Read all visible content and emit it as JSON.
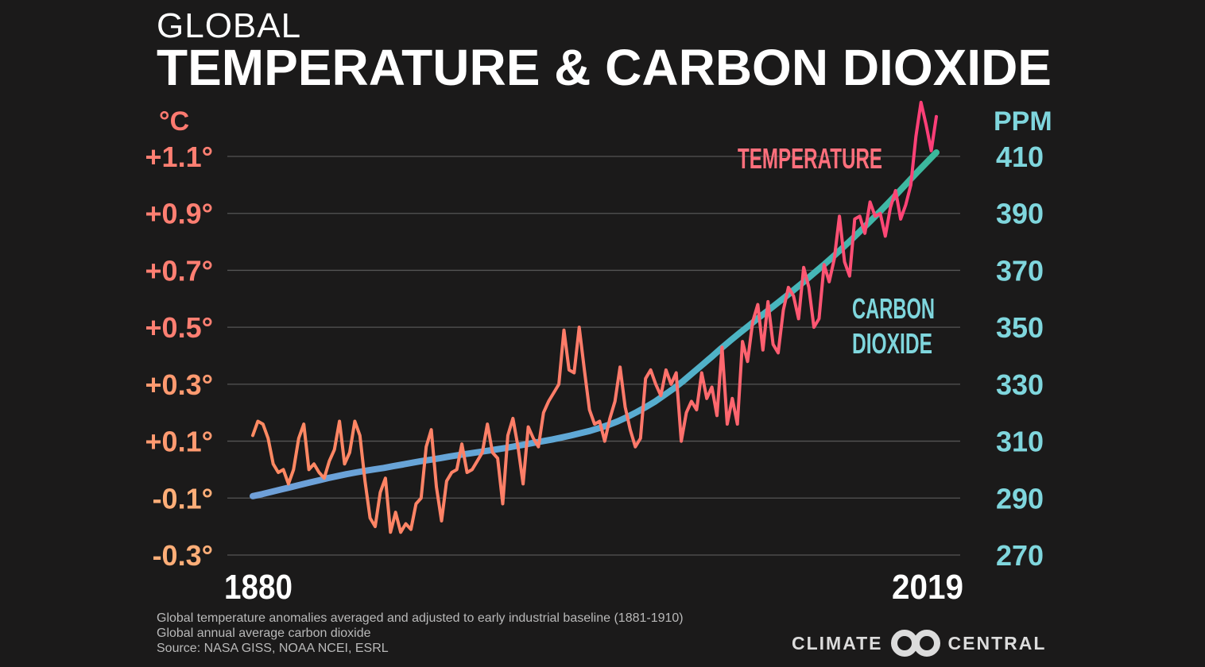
{
  "title": {
    "line1": "GLOBAL",
    "line2": "TEMPERATURE & CARBON DIOXIDE"
  },
  "colors": {
    "background": "#1b1a1a",
    "temperature": "#ff5f6f",
    "co2": "#5bc0c8",
    "grid": "#555555"
  },
  "footnote": {
    "line1": "Global temperature anomalies averaged and adjusted to early industrial baseline (1881-1910)",
    "line2": "Global annual average carbon dioxide",
    "line3": "Source: NASA GISS,  NOAA NCEI, ESRL"
  },
  "logo": {
    "left": "CLIMATE",
    "right": "CENTRAL",
    "icon": "double-ring-icon"
  },
  "chart_data": {
    "type": "line",
    "title": "TEMPERATURE & CARBON DIOXIDE",
    "x_start": 1880,
    "x_end": 2019,
    "x_tick_labels": [
      "1880",
      "2019"
    ],
    "y_left": {
      "unit_label": "°C",
      "ylim": [
        -0.3,
        1.1
      ],
      "ticks": [
        1.1,
        0.9,
        0.7,
        0.5,
        0.3,
        0.1,
        -0.1,
        -0.3
      ],
      "tick_labels": [
        "+1.1°",
        "+0.9°",
        "+0.7°",
        "+0.5°",
        "+0.3°",
        "+0.1°",
        "-0.1°",
        "-0.3°"
      ]
    },
    "y_right": {
      "unit_label": "PPM",
      "ylim": [
        270,
        410
      ],
      "ticks": [
        410,
        390,
        370,
        350,
        330,
        310,
        290,
        270
      ],
      "tick_labels": [
        "410",
        "390",
        "370",
        "350",
        "330",
        "310",
        "290",
        "270"
      ]
    },
    "grid": true,
    "series": [
      {
        "name": "TEMPERATURE",
        "axis": "left",
        "values": [
          0.12,
          0.17,
          0.16,
          0.11,
          0.02,
          -0.01,
          0.0,
          -0.05,
          0.0,
          0.11,
          0.16,
          0.0,
          0.02,
          -0.01,
          -0.03,
          0.03,
          0.07,
          0.17,
          0.02,
          0.06,
          0.17,
          0.12,
          -0.04,
          -0.17,
          -0.2,
          -0.08,
          -0.03,
          -0.22,
          -0.15,
          -0.22,
          -0.19,
          -0.21,
          -0.12,
          -0.1,
          0.08,
          0.14,
          -0.06,
          -0.18,
          -0.04,
          -0.01,
          0.0,
          0.09,
          -0.01,
          0.0,
          0.03,
          0.06,
          0.16,
          0.06,
          0.04,
          -0.12,
          0.12,
          0.18,
          0.08,
          -0.05,
          0.15,
          0.11,
          0.08,
          0.2,
          0.24,
          0.27,
          0.3,
          0.49,
          0.35,
          0.34,
          0.5,
          0.35,
          0.21,
          0.16,
          0.17,
          0.1,
          0.18,
          0.24,
          0.36,
          0.22,
          0.14,
          0.08,
          0.11,
          0.32,
          0.35,
          0.3,
          0.26,
          0.35,
          0.3,
          0.34,
          0.1,
          0.2,
          0.24,
          0.21,
          0.34,
          0.25,
          0.29,
          0.19,
          0.43,
          0.16,
          0.25,
          0.16,
          0.45,
          0.38,
          0.52,
          0.58,
          0.42,
          0.59,
          0.44,
          0.41,
          0.56,
          0.64,
          0.61,
          0.53,
          0.71,
          0.64,
          0.5,
          0.53,
          0.72,
          0.66,
          0.74,
          0.89,
          0.73,
          0.68,
          0.88,
          0.89,
          0.83,
          0.94,
          0.89,
          0.9,
          0.82,
          0.92,
          0.98,
          0.88,
          0.93,
          1.0,
          1.17,
          1.29,
          1.21,
          1.12,
          1.24
        ],
        "color": "#ff5f6f"
      },
      {
        "name": "CARBON DIOXIDE",
        "axis": "right",
        "values": [
          290.7,
          291.4,
          292.2,
          293.0,
          293.8,
          294.6,
          295.4,
          296.2,
          297.0,
          297.7,
          298.4,
          299.0,
          299.6,
          300.1,
          300.6,
          301.2,
          301.8,
          302.4,
          303.0,
          303.5,
          304.0,
          304.6,
          305.1,
          305.6,
          306.1,
          306.6,
          307.1,
          307.6,
          308.2,
          308.8,
          309.4,
          310.0,
          310.6,
          311.3,
          312.0,
          312.8,
          313.6,
          314.6,
          315.7,
          317.0,
          318.5,
          320.2,
          322.0,
          324.0,
          326.3,
          328.6,
          331.2,
          334.0,
          336.8,
          339.6,
          342.5,
          345.3,
          348.0,
          350.6,
          353.3,
          355.8,
          358.4,
          361.0,
          363.7,
          366.4,
          369.2,
          372.0,
          374.9,
          377.9,
          381.0,
          384.2,
          387.4,
          390.7,
          394.1,
          397.6,
          401.1,
          404.6,
          408.0,
          411.4
        ]
      }
    ],
    "co2_x_start": 1880,
    "co2_x_end": 2019,
    "annotations": [
      {
        "text": "TEMPERATURE",
        "color": "#ff6f7c"
      },
      {
        "text": "CARBON\nDIOXIDE",
        "color": "#7fd6dd"
      }
    ]
  }
}
